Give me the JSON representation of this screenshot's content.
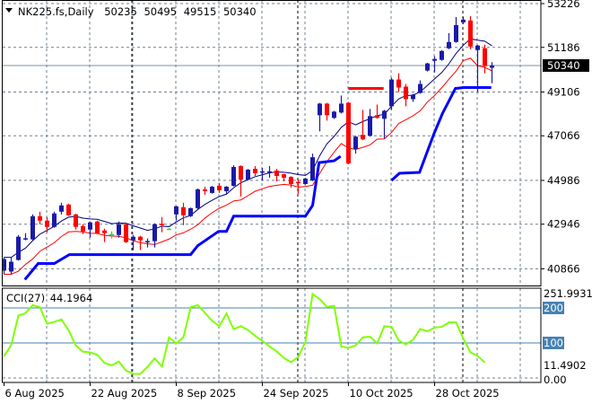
{
  "header": {
    "symbol_label": "NK225.fs,Daily",
    "open": "50235",
    "high": "50495",
    "low": "49515",
    "close": "50340"
  },
  "price_axis": {
    "ticks": [
      "53226",
      "51186",
      "49106",
      "47066",
      "44986",
      "42946",
      "40866"
    ],
    "current_price": "50340"
  },
  "cci": {
    "label": "CCI(27)",
    "value": "44.1964",
    "axis_max": "251.9931",
    "axis_min": "11.4902",
    "axis_zero": "0.00",
    "levels": [
      "200",
      "100"
    ]
  },
  "colors": {
    "bull": "#1a1aa8",
    "bear": "#ff0000",
    "doji": "#33cc33",
    "ma_upper": "#000080",
    "ma_lower": "#ff0000",
    "stop_line": "#0000ff",
    "cci_line": "#80ff00",
    "level_line": "#4682b4",
    "grid": "#708090"
  },
  "chart_data": {
    "type": "candlestick",
    "title": "NK225.fs,Daily",
    "ylim": [
      40866,
      53226
    ],
    "x_tick_labels": [
      {
        "index": 0,
        "label": "6 Aug 2025"
      },
      {
        "index": 12,
        "label": "22 Aug 2025"
      },
      {
        "index": 24,
        "label": "8 Sep 2025"
      },
      {
        "index": 36,
        "label": "24 Sep 2025"
      },
      {
        "index": 48,
        "label": "10 Oct 2025"
      },
      {
        "index": 60,
        "label": "28 Oct 2025"
      }
    ],
    "ohlc": [
      [
        40780,
        41400,
        40613,
        41320
      ],
      [
        40738,
        41402,
        40613,
        41195
      ],
      [
        41278,
        42444,
        41250,
        42361
      ],
      [
        42260,
        42528,
        42194,
        42290
      ],
      [
        42236,
        43401,
        42200,
        43318
      ],
      [
        43318,
        43527,
        42944,
        43110
      ],
      [
        43110,
        43277,
        42569,
        42819
      ],
      [
        42819,
        43527,
        42780,
        43443
      ],
      [
        43527,
        43943,
        43401,
        43818
      ],
      [
        43860,
        43900,
        43330,
        43360
      ],
      [
        43401,
        43430,
        42693,
        42819
      ],
      [
        42860,
        42944,
        42486,
        42611
      ],
      [
        42693,
        43060,
        42320,
        43027
      ],
      [
        43069,
        43110,
        42486,
        42528
      ],
      [
        42652,
        42735,
        42111,
        42528
      ],
      [
        42486,
        42611,
        42278,
        42486
      ],
      [
        42444,
        43069,
        42320,
        42944
      ],
      [
        42944,
        42985,
        42069,
        42111
      ],
      [
        42194,
        42444,
        41736,
        42361
      ],
      [
        42361,
        42400,
        41736,
        42194
      ],
      [
        42130,
        42278,
        41861,
        42160
      ],
      [
        42153,
        42985,
        41861,
        42944
      ],
      [
        42960,
        43277,
        42569,
        42930
      ],
      [
        42735,
        42760,
        42710,
        42735
      ],
      [
        43401,
        43800,
        43110,
        43776
      ],
      [
        43735,
        43943,
        42902,
        43360
      ],
      [
        43318,
        43720,
        43280,
        43693
      ],
      [
        43693,
        44609,
        43650,
        44567
      ],
      [
        44567,
        44692,
        44318,
        44484
      ],
      [
        44401,
        44730,
        44370,
        44692
      ],
      [
        44734,
        44859,
        44401,
        44526
      ],
      [
        44484,
        44720,
        44359,
        44692
      ],
      [
        44734,
        45692,
        44700,
        45610
      ],
      [
        45651,
        45690,
        44234,
        45025
      ],
      [
        45025,
        45520,
        44990,
        45485
      ],
      [
        45527,
        45651,
        45192,
        45317
      ],
      [
        45390,
        45568,
        44984,
        45410
      ],
      [
        45390,
        45651,
        45109,
        45410
      ],
      [
        45443,
        45527,
        44942,
        45192
      ],
      [
        45275,
        45300,
        44942,
        45109
      ],
      [
        45151,
        45180,
        44651,
        44818
      ],
      [
        44920,
        45025,
        44359,
        44890
      ],
      [
        44818,
        45100,
        44790,
        45067
      ],
      [
        44984,
        46233,
        44950,
        46066
      ],
      [
        48022,
        48600,
        47273,
        48564
      ],
      [
        48564,
        48600,
        47773,
        48022
      ],
      [
        47898,
        48230,
        47850,
        48189
      ],
      [
        48148,
        48939,
        48100,
        48564
      ],
      [
        48605,
        48640,
        45740,
        45775
      ],
      [
        46441,
        47065,
        46233,
        47024
      ],
      [
        47107,
        48272,
        46860,
        46899
      ],
      [
        47065,
        48314,
        47030,
        47981
      ],
      [
        48022,
        48522,
        47860,
        47898
      ],
      [
        47856,
        48270,
        46940,
        48231
      ],
      [
        48439,
        49771,
        48272,
        49688
      ],
      [
        49688,
        49979,
        49105,
        49313
      ],
      [
        49355,
        49480,
        48439,
        48772
      ],
      [
        48772,
        49020,
        48647,
        48980
      ],
      [
        49063,
        49646,
        49030,
        49480
      ],
      [
        50104,
        50470,
        50062,
        50437
      ],
      [
        50562,
        50770,
        50020,
        50645
      ],
      [
        50603,
        51060,
        50560,
        51020
      ],
      [
        51145,
        51853,
        51100,
        51436
      ],
      [
        51436,
        52602,
        51400,
        52227
      ],
      [
        52352,
        52602,
        52269,
        52477
      ],
      [
        52436,
        52644,
        51103,
        51228
      ],
      [
        51062,
        51300,
        49105,
        51270
      ],
      [
        51145,
        51311,
        49979,
        50312
      ],
      [
        50235,
        50495,
        49515,
        50340
      ]
    ],
    "stop_line_segments": [
      [
        [
          2.9,
          40363
        ],
        [
          4.75,
          41112
        ],
        [
          7,
          41112
        ],
        [
          9.1,
          41528
        ],
        [
          26,
          41528
        ],
        [
          27,
          41945
        ],
        [
          29.9,
          42611
        ],
        [
          31,
          42611
        ],
        [
          32,
          43318
        ],
        [
          42,
          43318
        ],
        [
          43,
          43818
        ],
        [
          43.9,
          45816
        ],
        [
          46,
          45900
        ],
        [
          46.9,
          46108
        ]
      ],
      [
        [
          54,
          44984
        ],
        [
          55.1,
          45317
        ],
        [
          57.9,
          45359
        ],
        [
          59.9,
          47148
        ],
        [
          61.1,
          48106
        ],
        [
          62.9,
          49272
        ],
        [
          64.1,
          49313
        ],
        [
          67.9,
          49313
        ]
      ]
    ],
    "resistance_segment": [
      [
        48,
        49272
      ],
      [
        52.9,
        49272
      ]
    ],
    "cci_values": [
      62,
      94,
      178,
      185,
      208,
      202,
      155,
      160,
      167,
      136,
      93,
      75,
      73,
      66,
      43,
      36,
      47,
      21,
      12,
      11.5,
      32,
      56,
      33,
      116,
      99,
      116,
      202,
      208,
      186,
      163,
      148,
      184,
      139,
      148,
      137,
      120,
      106,
      90,
      76,
      57,
      45,
      60,
      103,
      240,
      225,
      203,
      206,
      90,
      86,
      93,
      116,
      118,
      99,
      148,
      146,
      107,
      96,
      109,
      140,
      133,
      144,
      146,
      159,
      159,
      113,
      73,
      63,
      44.1964
    ]
  }
}
